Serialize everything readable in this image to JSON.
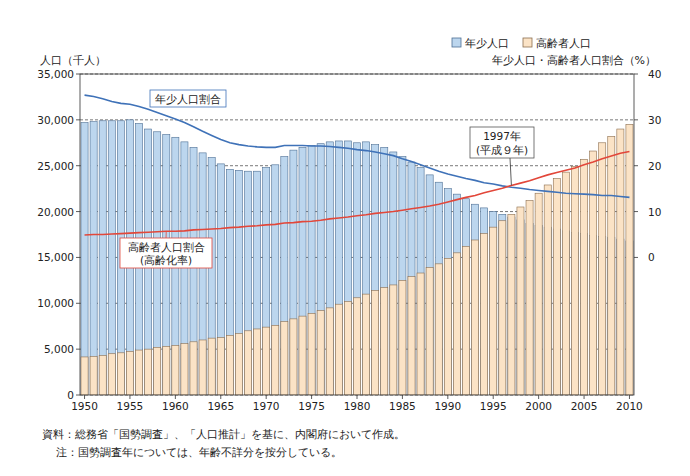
{
  "chart_data": {
    "type": "bar",
    "y_label": "人口（千人）",
    "y2_label": "年少人口・高齢者人口割合（%）",
    "categories": [
      "1950",
      null,
      null,
      null,
      null,
      "1955",
      null,
      null,
      null,
      null,
      "1960",
      null,
      null,
      null,
      null,
      "1965",
      null,
      null,
      null,
      null,
      "1970",
      null,
      null,
      null,
      null,
      "1975",
      null,
      null,
      null,
      null,
      "1980",
      null,
      null,
      null,
      null,
      "1985",
      null,
      null,
      null,
      null,
      "1990",
      null,
      null,
      null,
      null,
      "1995",
      null,
      null,
      null,
      null,
      "2000",
      null,
      null,
      null,
      null,
      "2005",
      null,
      null,
      null,
      null,
      "2010"
    ],
    "series": [
      {
        "name": "年少人口",
        "type": "bar",
        "color": "#bcd6ee",
        "values": [
          29700,
          29800,
          29900,
          29900,
          29900,
          30000,
          29600,
          29000,
          28700,
          28400,
          28100,
          27600,
          27000,
          26400,
          25900,
          25200,
          24600,
          24500,
          24400,
          24400,
          24800,
          25100,
          26000,
          26700,
          27000,
          27200,
          27400,
          27600,
          27700,
          27700,
          27500,
          27600,
          27300,
          27000,
          26500,
          26000,
          25400,
          24800,
          24000,
          23200,
          22500,
          21900,
          21400,
          20800,
          20400,
          20000,
          19700,
          19400,
          19100,
          18700,
          18500,
          18300,
          18100,
          17900,
          17700,
          17600,
          17400,
          17300,
          17200,
          17000,
          16800
        ]
      },
      {
        "name": "高齢者人口",
        "type": "bar",
        "color": "#fbe3c6",
        "values": [
          4150,
          4200,
          4300,
          4500,
          4600,
          4750,
          4900,
          5000,
          5200,
          5300,
          5400,
          5600,
          5800,
          6000,
          6200,
          6250,
          6500,
          6700,
          7000,
          7200,
          7400,
          7600,
          8000,
          8300,
          8600,
          8900,
          9200,
          9500,
          9900,
          10200,
          10600,
          11000,
          11400,
          11700,
          12000,
          12500,
          12900,
          13300,
          13900,
          14300,
          14900,
          15500,
          16200,
          16900,
          17600,
          18300,
          19000,
          19700,
          20500,
          21200,
          22000,
          22900,
          23600,
          24300,
          24900,
          25700,
          26600,
          27500,
          28200,
          29000,
          29500
        ]
      },
      {
        "name": "年少人口割合",
        "type": "line",
        "axis": "y2",
        "color": "#3f72b8",
        "values": [
          35.4,
          35.1,
          34.6,
          34.0,
          33.6,
          33.4,
          32.9,
          32.3,
          31.6,
          30.9,
          30.2,
          29.4,
          28.5,
          27.5,
          26.6,
          25.7,
          25.0,
          24.6,
          24.3,
          24.1,
          24.0,
          24.0,
          24.4,
          24.4,
          24.4,
          24.3,
          24.3,
          24.2,
          24.0,
          23.8,
          23.5,
          23.3,
          23.0,
          22.6,
          22.2,
          21.5,
          20.9,
          20.2,
          19.5,
          18.8,
          18.2,
          17.7,
          17.2,
          16.8,
          16.3,
          16.0,
          15.6,
          15.3,
          15.1,
          14.8,
          14.6,
          14.4,
          14.2,
          14.0,
          13.9,
          13.8,
          13.7,
          13.5,
          13.5,
          13.3,
          13.1
        ]
      },
      {
        "name": "高齢者人口割合\n(高齢化率)",
        "type": "line",
        "axis": "y2",
        "color": "#e2473a",
        "values": [
          4.9,
          5.0,
          5.0,
          5.1,
          5.2,
          5.3,
          5.4,
          5.5,
          5.6,
          5.7,
          5.7,
          5.8,
          6.0,
          6.1,
          6.2,
          6.3,
          6.5,
          6.6,
          6.8,
          6.9,
          7.1,
          7.2,
          7.5,
          7.6,
          7.8,
          7.9,
          8.1,
          8.4,
          8.6,
          8.8,
          9.1,
          9.3,
          9.6,
          9.8,
          10.0,
          10.3,
          10.6,
          10.9,
          11.2,
          11.6,
          12.1,
          12.6,
          13.1,
          13.5,
          14.1,
          14.6,
          15.1,
          15.7,
          16.2,
          16.7,
          17.4,
          18.0,
          18.5,
          19.0,
          19.5,
          20.2,
          20.8,
          21.5,
          22.1,
          22.7,
          23.1
        ]
      }
    ],
    "ylim": [
      0,
      35000
    ],
    "yticks": [
      0,
      {
        "value": 5000,
        "label": "5,000"
      },
      {
        "value": 10000,
        "label": "10,000"
      },
      {
        "value": 15000,
        "label": "15,000"
      },
      {
        "value": 20000,
        "label": "20,000"
      },
      {
        "value": 25000,
        "label": "25,000"
      },
      {
        "value": 30000,
        "label": "30,000"
      },
      {
        "value": 35000,
        "label": "35,000"
      }
    ],
    "y2lim": [
      -30,
      40
    ],
    "y2ticks": [
      0,
      10,
      20,
      30,
      40
    ],
    "grid": true,
    "stacked": false,
    "legend": "top-right",
    "annotations": [
      "1997年\n(平成９年)"
    ],
    "notes": [
      "資料：総務省「国勢調査」、「人口推計」を基に、内閣府において作成。",
      "注：国勢調査年については、年齢不詳分を按分している。"
    ]
  }
}
